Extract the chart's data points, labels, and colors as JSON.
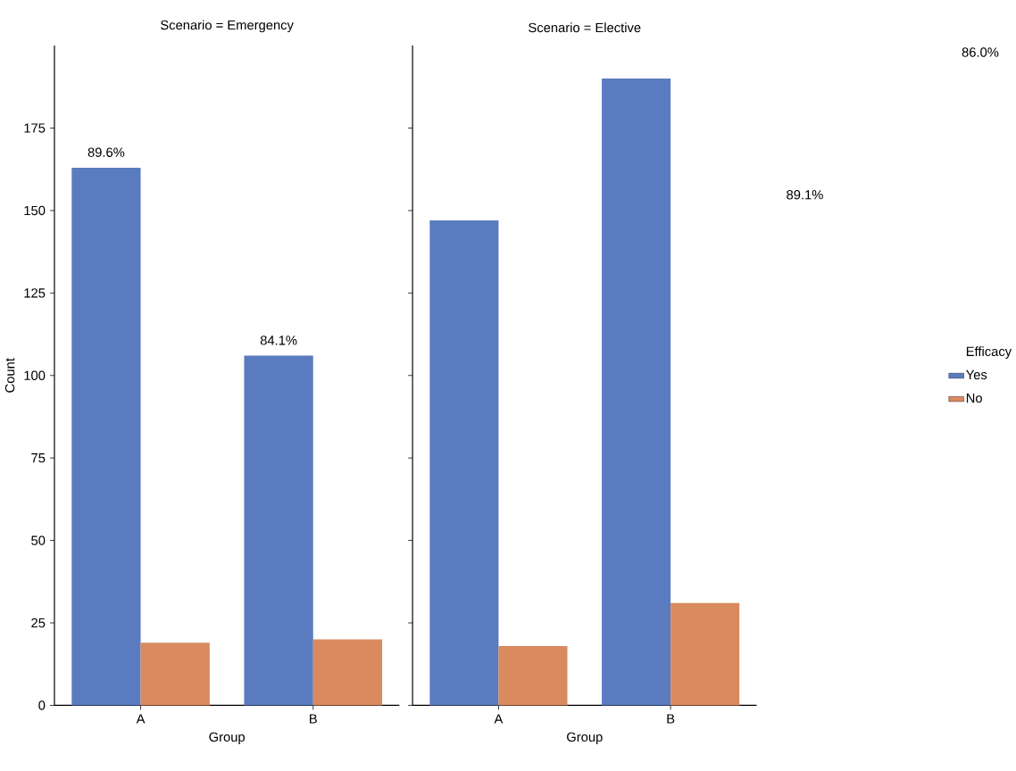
{
  "chart_data": [
    {
      "type": "bar",
      "title": "Scenario = Emergency",
      "xlabel": "Group",
      "ylabel": "Count",
      "categories": [
        "A",
        "B"
      ],
      "series": [
        {
          "color": "#5a7bbf",
          "values": [
            163,
            106
          ]
        },
        {
          "color": "#d98a5e",
          "values": [
            19,
            20
          ]
        }
      ],
      "ylim": [
        0,
        200
      ],
      "yticks": [
        0,
        25,
        50,
        75,
        100,
        125,
        150,
        175
      ],
      "annotations": [
        "89.6%",
        "84.1%"
      ]
    },
    {
      "type": "bar",
      "title": "Scenario = Elective",
      "xlabel": "Group",
      "categories": [
        "A",
        "B"
      ],
      "series": [
        {
          "name": "Yes",
          "color": "#5a7bbf",
          "values": [
            147,
            190
          ]
        },
        {
          "name": "No",
          "color": "#d98a5e",
          "values": [
            18,
            31
          ]
        }
      ],
      "ylim": [
        0,
        200
      ],
      "yticks": [
        0,
        25,
        50,
        75,
        100,
        125,
        150,
        175
      ],
      "tick_labels": "x",
      "legend_title": "Efficacy",
      "legend": "right",
      "annotations": [
        "89.1%",
        "86.0%"
      ]
    }
  ]
}
